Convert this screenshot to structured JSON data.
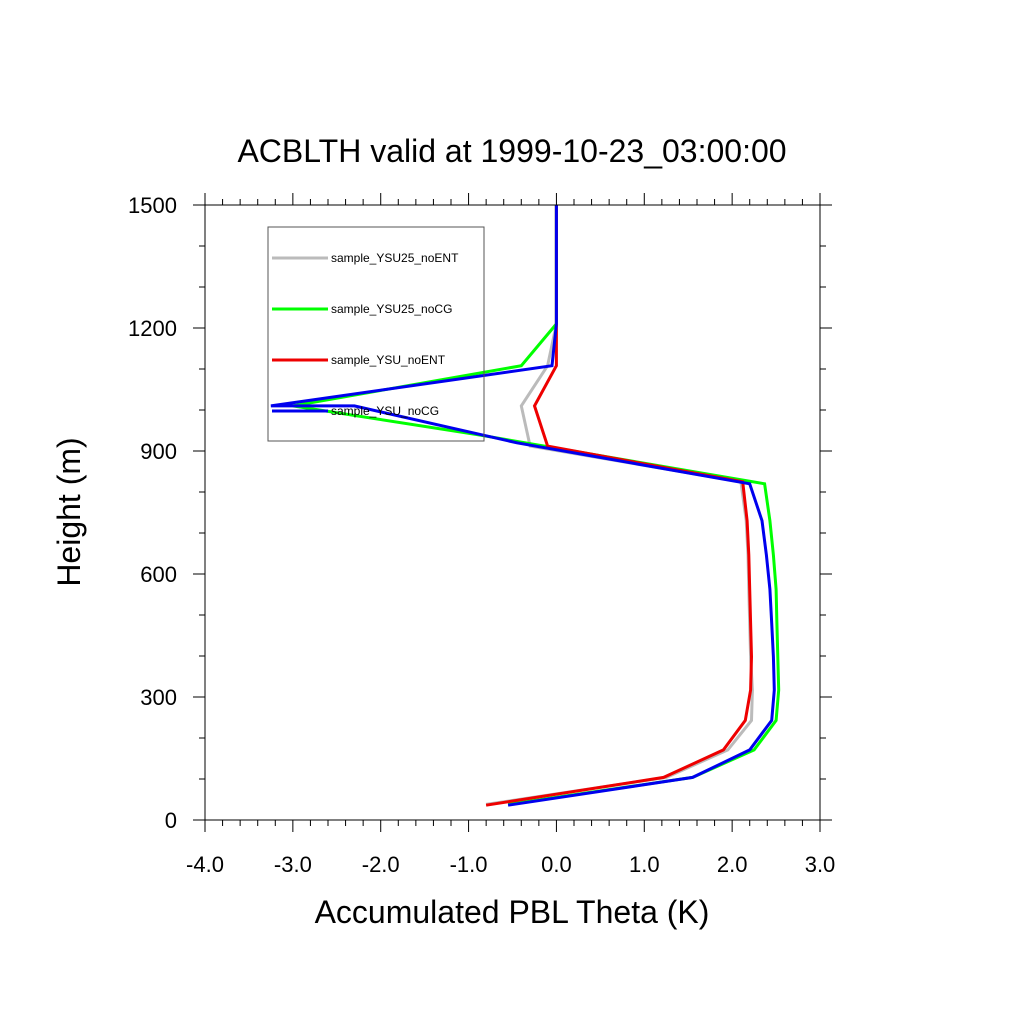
{
  "chart_data": {
    "type": "line",
    "title": "ACBLTH valid at 1999-10-23_03:00:00",
    "xlabel": "Accumulated PBL Theta (K)",
    "ylabel": "Height (m)",
    "xlim": [
      -4.0,
      3.0
    ],
    "ylim": [
      0,
      1500
    ],
    "xticks": [
      -4.0,
      -3.0,
      -2.0,
      -1.0,
      0.0,
      1.0,
      2.0,
      3.0
    ],
    "xtick_labels": [
      "-4.0",
      "-3.0",
      "-2.0",
      "-1.0",
      "0.0",
      "1.0",
      "2.0",
      "3.0"
    ],
    "yticks": [
      0,
      300,
      600,
      900,
      1200,
      1500
    ],
    "ytick_labels": [
      "0",
      "300",
      "600",
      "900",
      "1200",
      "1500"
    ],
    "grid": false,
    "legend_position": "top-left",
    "series": [
      {
        "name": "sample_YSU25_noENT",
        "color": "#bbbbbb",
        "points": [
          [
            -0.8,
            38
          ],
          [
            1.25,
            104
          ],
          [
            1.95,
            171
          ],
          [
            2.22,
            243
          ],
          [
            2.23,
            317
          ],
          [
            2.21,
            398
          ],
          [
            2.2,
            480
          ],
          [
            2.19,
            563
          ],
          [
            2.18,
            646
          ],
          [
            2.16,
            730
          ],
          [
            2.1,
            825
          ],
          [
            -0.3,
            912
          ],
          [
            -0.4,
            1010
          ],
          [
            -0.1,
            1108
          ],
          [
            0.0,
            1210
          ],
          [
            0.0,
            1500
          ]
        ]
      },
      {
        "name": "sample_YSU25_noCG",
        "color": "#00ff00",
        "points": [
          [
            -0.55,
            38
          ],
          [
            1.55,
            104
          ],
          [
            2.25,
            171
          ],
          [
            2.5,
            243
          ],
          [
            2.53,
            317
          ],
          [
            2.52,
            398
          ],
          [
            2.51,
            480
          ],
          [
            2.5,
            563
          ],
          [
            2.47,
            646
          ],
          [
            2.43,
            730
          ],
          [
            2.37,
            820
          ],
          [
            -0.9,
            940
          ],
          [
            -3.0,
            1010
          ],
          [
            -0.4,
            1108
          ],
          [
            0.0,
            1210
          ],
          [
            0.0,
            1500
          ]
        ]
      },
      {
        "name": "sample_YSU_noENT",
        "color": "#ee0000",
        "points": [
          [
            -0.8,
            36
          ],
          [
            1.22,
            104
          ],
          [
            1.9,
            171
          ],
          [
            2.15,
            243
          ],
          [
            2.21,
            317
          ],
          [
            2.22,
            398
          ],
          [
            2.21,
            480
          ],
          [
            2.2,
            563
          ],
          [
            2.19,
            646
          ],
          [
            2.17,
            730
          ],
          [
            2.12,
            825
          ],
          [
            -0.1,
            912
          ],
          [
            -0.25,
            1010
          ],
          [
            0.0,
            1108
          ],
          [
            0.0,
            1210
          ],
          [
            0.0,
            1500
          ]
        ]
      },
      {
        "name": "sample_YSU_noCG",
        "color": "#0000ee",
        "points": [
          [
            -0.55,
            36
          ],
          [
            1.55,
            104
          ],
          [
            2.2,
            171
          ],
          [
            2.45,
            243
          ],
          [
            2.48,
            317
          ],
          [
            2.47,
            398
          ],
          [
            2.45,
            480
          ],
          [
            2.43,
            563
          ],
          [
            2.39,
            646
          ],
          [
            2.34,
            730
          ],
          [
            2.2,
            820
          ],
          [
            -0.45,
            920
          ],
          [
            -2.3,
            1010
          ],
          [
            -3.25,
            1010
          ],
          [
            -0.05,
            1108
          ],
          [
            0.0,
            1210
          ],
          [
            0.0,
            1500
          ]
        ]
      }
    ]
  }
}
